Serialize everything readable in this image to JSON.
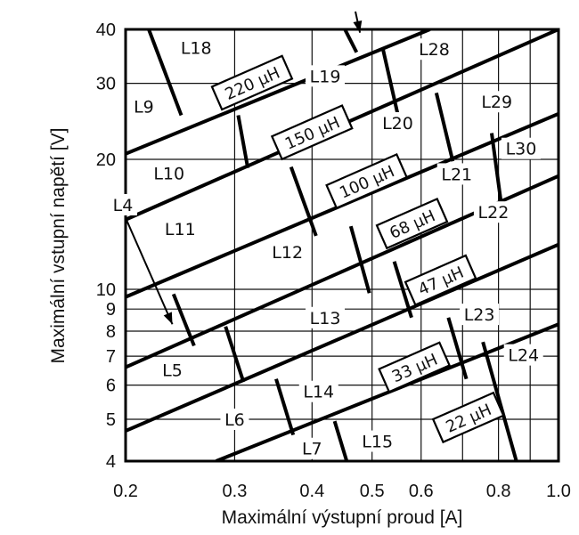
{
  "chart_data": {
    "type": "nomogram",
    "xlabel": "Maximální výstupní proud [A]",
    "ylabel": "Maximální vstupní napětí [V]",
    "x_scale": "log",
    "y_scale": "log",
    "xlim": [
      0.2,
      1.0
    ],
    "ylim": [
      4,
      40
    ],
    "grid": true,
    "x_ticks": [
      {
        "value": 0.2,
        "label": "0.2"
      },
      {
        "value": 0.3,
        "label": "0.3"
      },
      {
        "value": 0.4,
        "label": "0.4"
      },
      {
        "value": 0.5,
        "label": "0.5"
      },
      {
        "value": 0.6,
        "label": "0.6"
      },
      {
        "value": 0.8,
        "label": "0.8"
      },
      {
        "value": 1.0,
        "label": "1.0"
      }
    ],
    "y_ticks": [
      {
        "value": 4,
        "label": "4"
      },
      {
        "value": 5,
        "label": "5"
      },
      {
        "value": 6,
        "label": "6"
      },
      {
        "value": 7,
        "label": "7"
      },
      {
        "value": 8,
        "label": "8"
      },
      {
        "value": 9,
        "label": "9"
      },
      {
        "value": 10,
        "label": "10"
      },
      {
        "value": 20,
        "label": "20"
      },
      {
        "value": 30,
        "label": "30"
      },
      {
        "value": 40,
        "label": "40"
      }
    ],
    "x_grid": [
      0.2,
      0.3,
      0.4,
      0.5,
      0.6,
      0.7,
      0.8,
      0.9,
      1.0
    ],
    "y_grid": [
      4,
      5,
      6,
      7,
      8,
      9,
      10,
      20,
      30,
      40
    ],
    "bands": [
      {
        "from": [
          0.2,
          20.6
        ],
        "to": [
          0.62,
          40
        ]
      },
      {
        "from": [
          0.2,
          14.5
        ],
        "to": [
          1.0,
          40
        ]
      },
      {
        "from": [
          0.2,
          9.6
        ],
        "to": [
          1.0,
          25.5
        ]
      },
      {
        "from": [
          0.2,
          6.6
        ],
        "to": [
          1.0,
          18.3
        ]
      },
      {
        "from": [
          0.2,
          4.7
        ],
        "to": [
          1.0,
          12.7
        ]
      },
      {
        "from": [
          0.28,
          4.0
        ],
        "to": [
          1.0,
          8.3
        ]
      }
    ],
    "separators": [
      {
        "from": [
          0.218,
          40
        ],
        "to": [
          0.246,
          25.3
        ]
      },
      {
        "from": [
          0.304,
          25.3
        ],
        "to": [
          0.315,
          19.1
        ]
      },
      {
        "from": [
          0.452,
          40
        ],
        "to": [
          0.472,
          35.4
        ]
      },
      {
        "from": [
          0.52,
          36.3
        ],
        "to": [
          0.557,
          23.5
        ]
      },
      {
        "from": [
          0.635,
          28.5
        ],
        "to": [
          0.675,
          19.8
        ]
      },
      {
        "from": [
          0.78,
          23.0
        ],
        "to": [
          0.808,
          15.8
        ]
      },
      {
        "from": [
          0.37,
          19.2
        ],
        "to": [
          0.406,
          13.3
        ]
      },
      {
        "from": [
          0.462,
          14.0
        ],
        "to": [
          0.495,
          9.8
        ]
      },
      {
        "from": [
          0.543,
          11.6
        ],
        "to": [
          0.579,
          8.6
        ]
      },
      {
        "from": [
          0.664,
          8.6
        ],
        "to": [
          0.71,
          6.2
        ]
      },
      {
        "from": [
          0.239,
          9.75
        ],
        "to": [
          0.258,
          7.4
        ]
      },
      {
        "from": [
          0.29,
          8.2
        ],
        "to": [
          0.31,
          6.1
        ]
      },
      {
        "from": [
          0.35,
          6.2
        ],
        "to": [
          0.373,
          4.6
        ]
      },
      {
        "from": [
          0.435,
          4.95
        ],
        "to": [
          0.455,
          4.0
        ]
      },
      {
        "from": [
          0.755,
          7.55
        ],
        "to": [
          0.855,
          4.0
        ]
      }
    ],
    "inductance_labels": [
      {
        "text": "220 μH",
        "at": [
          0.32,
          30.1
        ]
      },
      {
        "text": "150 μH",
        "at": [
          0.4,
          23.1
        ]
      },
      {
        "text": "100 μH",
        "at": [
          0.49,
          17.8
        ]
      },
      {
        "text": "68 μH",
        "at": [
          0.58,
          14.2
        ]
      },
      {
        "text": "47 μH",
        "at": [
          0.645,
          10.5
        ]
      },
      {
        "text": "33 μH",
        "at": [
          0.585,
          6.6
        ]
      },
      {
        "text": "22 μH",
        "at": [
          0.715,
          5.05
        ]
      }
    ],
    "zone_labels": [
      {
        "text": "L18",
        "at": [
          0.26,
          36.3
        ]
      },
      {
        "text": "L9",
        "at": [
          0.214,
          26.5
        ]
      },
      {
        "text": "L19",
        "at": [
          0.42,
          31.2
        ]
      },
      {
        "text": "L28",
        "at": [
          0.63,
          36.0
        ]
      },
      {
        "text": "L20",
        "at": [
          0.55,
          24.3
        ]
      },
      {
        "text": "L29",
        "at": [
          0.795,
          27.2
        ]
      },
      {
        "text": "L10",
        "at": [
          0.235,
          18.6
        ]
      },
      {
        "text": "L30",
        "at": [
          0.87,
          21.2
        ]
      },
      {
        "text": "L21",
        "at": [
          0.685,
          18.5
        ]
      },
      {
        "text": "L11",
        "at": [
          0.245,
          13.8
        ]
      },
      {
        "text": "L12",
        "at": [
          0.365,
          12.2
        ]
      },
      {
        "text": "L22",
        "at": [
          0.785,
          15.1
        ]
      },
      {
        "text": "L4",
        "at": [
          0.198,
          15.7
        ]
      },
      {
        "text": "L13",
        "at": [
          0.42,
          8.6
        ]
      },
      {
        "text": "L23",
        "at": [
          0.745,
          8.75
        ]
      },
      {
        "text": "L5",
        "at": [
          0.238,
          6.5
        ]
      },
      {
        "text": "L24",
        "at": [
          0.878,
          7.05
        ]
      },
      {
        "text": "L14",
        "at": [
          0.41,
          5.8
        ]
      },
      {
        "text": "L6",
        "at": [
          0.3,
          5.0
        ]
      },
      {
        "text": "L7",
        "at": [
          0.4,
          4.28
        ]
      },
      {
        "text": "L15",
        "at": [
          0.51,
          4.45
        ]
      }
    ],
    "arrows": [
      {
        "from": [
          0.201,
          14.4
        ],
        "to": [
          0.238,
          8.3
        ]
      },
      {
        "from": [
          0.47,
          44.0
        ],
        "to": [
          0.478,
          39.3
        ]
      }
    ]
  }
}
